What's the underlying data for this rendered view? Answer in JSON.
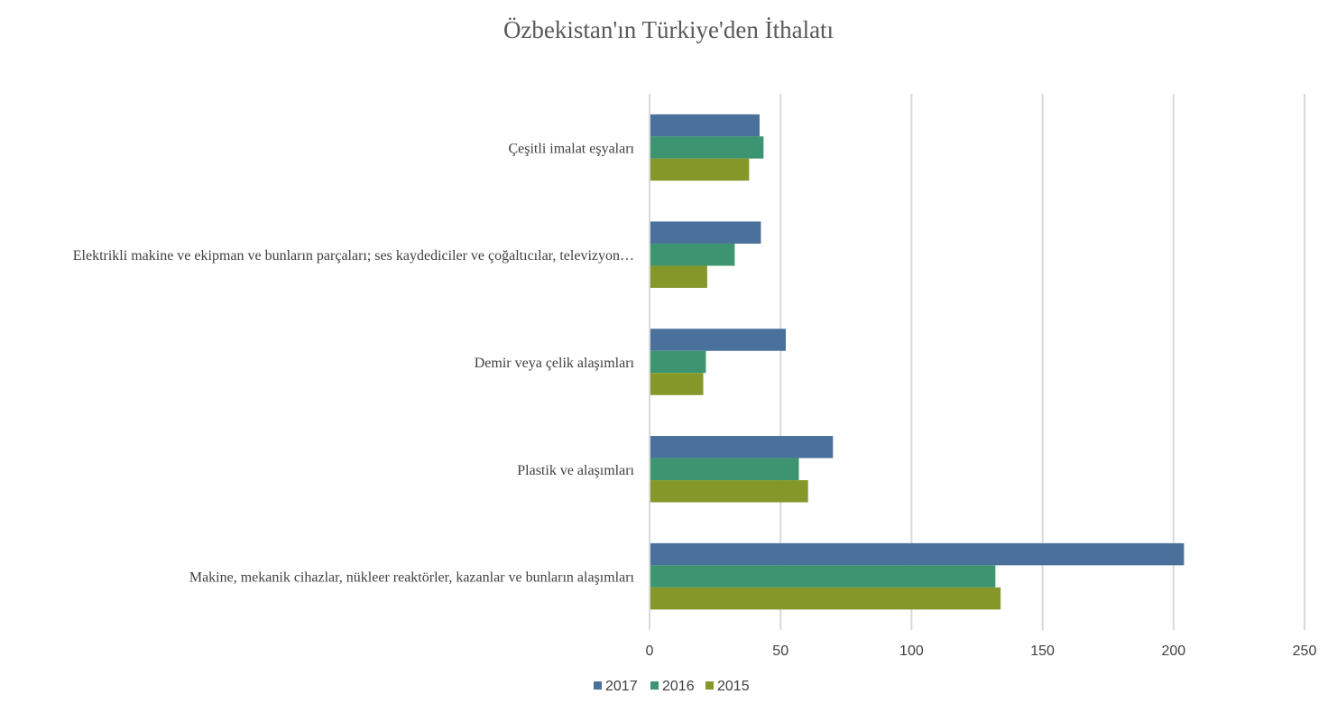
{
  "chart_data": {
    "type": "bar",
    "orientation": "horizontal",
    "title": "Özbekistan'ın Türkiye'den İthalatı",
    "categories": [
      "Çeşitli imalat eşyaları",
      "Elektrikli makine ve ekipman ve bunların parçaları; ses kaydediciler ve çoğaltıcılar, televizyon…",
      "Demir veya çelik alaşımları",
      "Plastik ve alaşımları",
      "Makine, mekanik cihazlar, nükleer reaktörler, kazanlar ve bunların alaşımları"
    ],
    "series": [
      {
        "name": "2017",
        "color": "#4a719c",
        "values": [
          42,
          42.5,
          52,
          70,
          204
        ]
      },
      {
        "name": "2016",
        "color": "#3c9570",
        "values": [
          43.5,
          32.5,
          21.5,
          57,
          132
        ]
      },
      {
        "name": "2015",
        "color": "#86972a",
        "values": [
          38,
          22,
          20.5,
          60.5,
          134
        ]
      }
    ],
    "xlim": [
      0,
      250
    ],
    "xticks": [
      "0",
      "50",
      "100",
      "150",
      "200",
      "250"
    ],
    "grid": true,
    "legend_position": "bottom"
  }
}
